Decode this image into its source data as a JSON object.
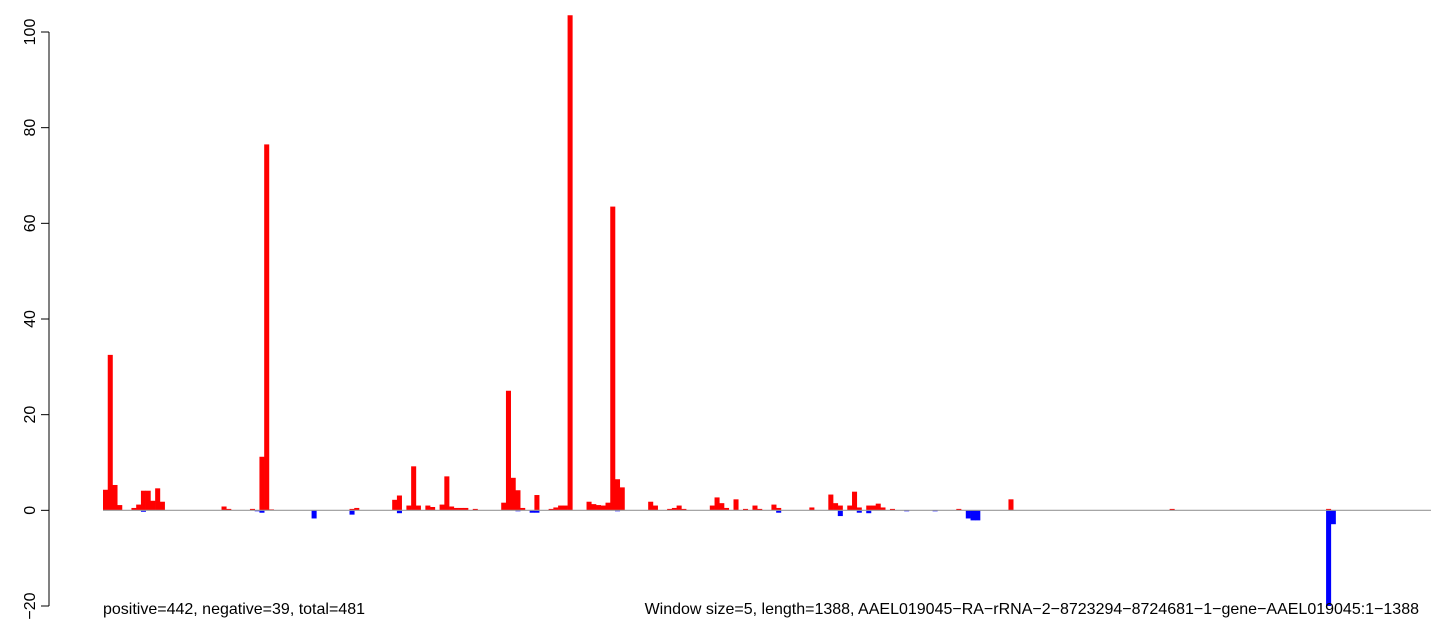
{
  "chart_data": {
    "type": "bar",
    "title": "",
    "xlabel": "",
    "ylabel": "",
    "ylim": [
      -20,
      100
    ],
    "y_ticks": [
      -20,
      0,
      20,
      40,
      60,
      80,
      100
    ],
    "y_tick_labels": [
      "−20",
      "0",
      "20",
      "40",
      "60",
      "80",
      "100"
    ],
    "grid": false,
    "zero_line": true,
    "colors": {
      "positive": "#ff0000",
      "negative": "#0000ff",
      "baseline": "#999999"
    },
    "captions": [
      "positive=442, negative=39, total=481",
      "Window size=5, length=1388, AAEL019045−RA−rRNA−2−8723294−8724681−1−gene−AAEL019045:1−1388"
    ],
    "x_range": [
      1,
      1388
    ],
    "bin_width": 5,
    "positive_bars": [
      [
        1,
        4.3
      ],
      [
        6,
        32.5
      ],
      [
        11,
        5.3
      ],
      [
        16,
        1.1
      ],
      [
        31,
        0.5
      ],
      [
        36,
        1.2
      ],
      [
        41,
        4.1
      ],
      [
        46,
        4.1
      ],
      [
        51,
        2.0
      ],
      [
        56,
        4.6
      ],
      [
        61,
        1.8
      ],
      [
        126,
        0.8
      ],
      [
        131,
        0.3
      ],
      [
        156,
        0.3
      ],
      [
        166,
        11.2
      ],
      [
        171,
        76.5
      ],
      [
        176,
        0.2
      ],
      [
        261,
        0.3
      ],
      [
        266,
        0.5
      ],
      [
        306,
        2.2
      ],
      [
        311,
        3.1
      ],
      [
        321,
        1.0
      ],
      [
        326,
        9.2
      ],
      [
        331,
        1.0
      ],
      [
        341,
        1.0
      ],
      [
        346,
        0.7
      ],
      [
        356,
        1.2
      ],
      [
        361,
        7.1
      ],
      [
        366,
        0.8
      ],
      [
        371,
        0.5
      ],
      [
        376,
        0.5
      ],
      [
        381,
        0.5
      ],
      [
        391,
        0.3
      ],
      [
        421,
        1.6
      ],
      [
        426,
        25.0
      ],
      [
        431,
        6.8
      ],
      [
        436,
        4.2
      ],
      [
        441,
        0.5
      ],
      [
        456,
        3.2
      ],
      [
        471,
        0.3
      ],
      [
        476,
        0.6
      ],
      [
        481,
        1.0
      ],
      [
        486,
        1.0
      ],
      [
        491,
        103.5
      ],
      [
        511,
        1.8
      ],
      [
        516,
        1.3
      ],
      [
        521,
        1.1
      ],
      [
        526,
        1.0
      ],
      [
        531,
        1.6
      ],
      [
        536,
        63.5
      ],
      [
        541,
        6.5
      ],
      [
        546,
        4.8
      ],
      [
        576,
        1.8
      ],
      [
        581,
        1.0
      ],
      [
        596,
        0.3
      ],
      [
        601,
        0.5
      ],
      [
        606,
        1.0
      ],
      [
        611,
        0.3
      ],
      [
        641,
        1.0
      ],
      [
        646,
        2.7
      ],
      [
        651,
        1.5
      ],
      [
        656,
        0.5
      ],
      [
        666,
        2.3
      ],
      [
        676,
        0.3
      ],
      [
        686,
        1.0
      ],
      [
        691,
        0.3
      ],
      [
        706,
        1.2
      ],
      [
        711,
        0.5
      ],
      [
        746,
        0.6
      ],
      [
        766,
        3.3
      ],
      [
        771,
        1.5
      ],
      [
        776,
        1.0
      ],
      [
        786,
        1.0
      ],
      [
        791,
        3.9
      ],
      [
        796,
        0.6
      ],
      [
        806,
        1.0
      ],
      [
        811,
        1.0
      ],
      [
        816,
        1.4
      ],
      [
        821,
        0.6
      ],
      [
        831,
        0.3
      ],
      [
        901,
        0.3
      ],
      [
        956,
        2.3
      ],
      [
        1126,
        0.3
      ],
      [
        1291,
        0.3
      ]
    ],
    "negative_bars": [
      [
        41,
        -0.3
      ],
      [
        161,
        -0.2
      ],
      [
        166,
        -0.5
      ],
      [
        221,
        -1.7
      ],
      [
        261,
        -0.9
      ],
      [
        311,
        -0.6
      ],
      [
        436,
        -0.2
      ],
      [
        451,
        -0.5
      ],
      [
        456,
        -0.5
      ],
      [
        541,
        -0.2
      ],
      [
        711,
        -0.5
      ],
      [
        776,
        -1.2
      ],
      [
        796,
        -0.5
      ],
      [
        806,
        -0.6
      ],
      [
        846,
        -0.2
      ],
      [
        876,
        -0.2
      ],
      [
        911,
        -1.7
      ],
      [
        916,
        -2.1
      ],
      [
        921,
        -2.1
      ],
      [
        1291,
        -20.0
      ],
      [
        1296,
        -2.9
      ]
    ]
  }
}
